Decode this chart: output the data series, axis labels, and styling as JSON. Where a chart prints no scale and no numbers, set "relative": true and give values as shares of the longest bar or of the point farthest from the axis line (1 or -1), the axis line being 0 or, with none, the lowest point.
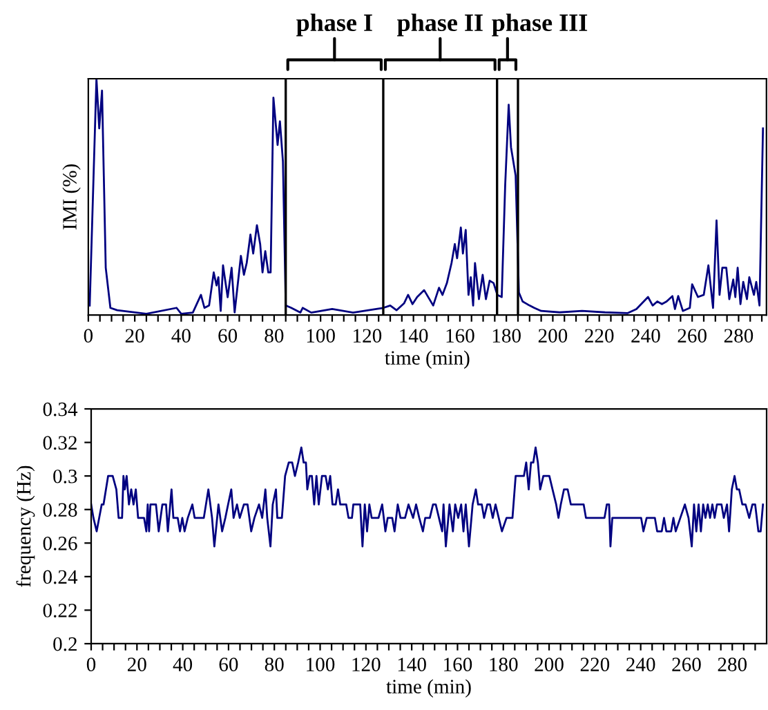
{
  "chart_data": [
    {
      "type": "line",
      "relative": true,
      "xlabel": "time (min)",
      "ylabel": "IMI (%)",
      "xlim": [
        0,
        292
      ],
      "xticks": [
        0,
        {
          "value": 5,
          "label": null
        },
        {
          "value": 10,
          "label": null
        },
        {
          "value": 15,
          "label": null
        },
        20,
        {
          "value": 25,
          "label": null
        },
        {
          "value": 30,
          "label": null
        },
        {
          "value": 35,
          "label": null
        },
        40,
        {
          "value": 45,
          "label": null
        },
        {
          "value": 50,
          "label": null
        },
        {
          "value": 55,
          "label": null
        },
        60,
        {
          "value": 65,
          "label": null
        },
        {
          "value": 70,
          "label": null
        },
        {
          "value": 75,
          "label": null
        },
        80,
        {
          "value": 85,
          "label": null
        },
        {
          "value": 90,
          "label": null
        },
        {
          "value": 95,
          "label": null
        },
        100,
        {
          "value": 105,
          "label": null
        },
        {
          "value": 110,
          "label": null
        },
        {
          "value": 115,
          "label": null
        },
        120,
        {
          "value": 125,
          "label": null
        },
        {
          "value": 130,
          "label": null
        },
        {
          "value": 135,
          "label": null
        },
        140,
        {
          "value": 145,
          "label": null
        },
        {
          "value": 150,
          "label": null
        },
        {
          "value": 155,
          "label": null
        },
        160,
        {
          "value": 165,
          "label": null
        },
        {
          "value": 170,
          "label": null
        },
        {
          "value": 175,
          "label": null
        },
        180,
        {
          "value": 185,
          "label": null
        },
        {
          "value": 190,
          "label": null
        },
        {
          "value": 195,
          "label": null
        },
        200,
        {
          "value": 205,
          "label": null
        },
        {
          "value": 210,
          "label": null
        },
        {
          "value": 215,
          "label": null
        },
        220,
        {
          "value": 225,
          "label": null
        },
        {
          "value": 230,
          "label": null
        },
        {
          "value": 235,
          "label": null
        },
        240,
        {
          "value": 245,
          "label": null
        },
        {
          "value": 250,
          "label": null
        },
        {
          "value": 255,
          "label": null
        },
        260,
        {
          "value": 265,
          "label": null
        },
        {
          "value": 270,
          "label": null
        },
        {
          "value": 275,
          "label": null
        },
        280,
        {
          "value": 285,
          "label": null
        },
        {
          "value": 290,
          "label": null
        }
      ],
      "ref_lines": [
        {
          "axis": "x",
          "value": 85,
          "color": "#000000"
        },
        {
          "axis": "x",
          "value": 127,
          "color": "#000000"
        },
        {
          "axis": "x",
          "value": 176,
          "color": "#000000"
        },
        {
          "axis": "x",
          "value": 185,
          "color": "#000000"
        }
      ],
      "annotations": [
        "phase I",
        "phase II",
        "phase III"
      ],
      "series": [
        {
          "color": "#000080",
          "x": [
            0.6,
            3.5,
            4.7,
            5.9,
            7.5,
            9.5,
            12.4,
            25,
            38,
            40,
            45,
            48.5,
            50,
            52,
            54,
            55.2,
            56,
            57,
            58,
            60,
            61.7,
            63,
            65.7,
            67,
            68.2,
            69.8,
            71,
            72.6,
            74,
            75,
            76.2,
            77.5,
            78.5,
            79.7,
            81.5,
            82.5,
            83.8,
            85,
            87.4,
            91.3,
            92.3,
            96,
            105,
            114,
            124,
            127,
            130,
            132.7,
            136,
            137.7,
            139.6,
            141.6,
            144.6,
            148.5,
            151,
            152.5,
            154.4,
            156.4,
            157.8,
            158.8,
            160.4,
            161.3,
            162.5,
            163.7,
            164.7,
            165.7,
            166.5,
            168.2,
            169.8,
            171.2,
            172.8,
            174.5,
            176.1,
            178,
            179.5,
            181,
            182,
            184,
            185.4,
            187,
            190,
            192,
            195,
            203,
            212.6,
            222.5,
            232.3,
            236,
            241,
            243,
            245,
            247,
            249,
            251.5,
            252.6,
            254,
            256,
            259,
            260,
            262.5,
            265,
            267,
            269,
            270.5,
            271.8,
            273,
            274.7,
            276,
            277.7,
            278.6,
            279.6,
            280.8,
            282,
            283.6,
            284.6,
            286.6,
            287.6,
            289,
            290.5
          ],
          "values": [
            0.04,
            1.0,
            0.79,
            0.95,
            0.2,
            0.03,
            0.02,
            0.005,
            0.03,
            0.005,
            0.01,
            0.085,
            0.03,
            0.04,
            0.18,
            0.125,
            0.16,
            0.017,
            0.21,
            0.075,
            0.2,
            0.011,
            0.25,
            0.17,
            0.22,
            0.34,
            0.26,
            0.38,
            0.3,
            0.18,
            0.27,
            0.18,
            0.18,
            0.92,
            0.72,
            0.82,
            0.65,
            0.04,
            0.03,
            0.01,
            0.03,
            0.01,
            0.025,
            0.01,
            0.025,
            0.03,
            0.04,
            0.02,
            0.05,
            0.085,
            0.046,
            0.076,
            0.105,
            0.04,
            0.115,
            0.085,
            0.135,
            0.22,
            0.3,
            0.24,
            0.37,
            0.26,
            0.36,
            0.085,
            0.16,
            0.04,
            0.22,
            0.067,
            0.17,
            0.067,
            0.145,
            0.135,
            0.085,
            0.076,
            0.55,
            0.89,
            0.71,
            0.59,
            0.095,
            0.057,
            0.04,
            0.03,
            0.017,
            0.011,
            0.017,
            0.011,
            0.008,
            0.025,
            0.076,
            0.04,
            0.057,
            0.046,
            0.057,
            0.08,
            0.025,
            0.08,
            0.017,
            0.03,
            0.13,
            0.076,
            0.085,
            0.21,
            0.03,
            0.4,
            0.085,
            0.2,
            0.2,
            0.067,
            0.15,
            0.076,
            0.2,
            0.046,
            0.14,
            0.067,
            0.16,
            0.085,
            0.14,
            0.04,
            0.79
          ]
        }
      ]
    },
    {
      "type": "line",
      "xlabel": "time (min)",
      "ylabel": "frequency (Hz)",
      "xlim": [
        0,
        295
      ],
      "ylim": [
        0.2,
        0.34
      ],
      "yticks": [
        0.2,
        0.22,
        0.24,
        0.26,
        0.28,
        0.3,
        0.32,
        0.34
      ],
      "xticks": [
        0,
        {
          "value": 5,
          "label": null
        },
        {
          "value": 10,
          "label": null
        },
        {
          "value": 15,
          "label": null
        },
        20,
        {
          "value": 25,
          "label": null
        },
        {
          "value": 30,
          "label": null
        },
        {
          "value": 35,
          "label": null
        },
        40,
        {
          "value": 45,
          "label": null
        },
        {
          "value": 50,
          "label": null
        },
        {
          "value": 55,
          "label": null
        },
        60,
        {
          "value": 65,
          "label": null
        },
        {
          "value": 70,
          "label": null
        },
        {
          "value": 75,
          "label": null
        },
        80,
        {
          "value": 85,
          "label": null
        },
        {
          "value": 90,
          "label": null
        },
        {
          "value": 95,
          "label": null
        },
        100,
        {
          "value": 105,
          "label": null
        },
        {
          "value": 110,
          "label": null
        },
        {
          "value": 115,
          "label": null
        },
        120,
        {
          "value": 125,
          "label": null
        },
        {
          "value": 130,
          "label": null
        },
        {
          "value": 135,
          "label": null
        },
        140,
        {
          "value": 145,
          "label": null
        },
        {
          "value": 150,
          "label": null
        },
        {
          "value": 155,
          "label": null
        },
        160,
        {
          "value": 165,
          "label": null
        },
        {
          "value": 170,
          "label": null
        },
        {
          "value": 175,
          "label": null
        },
        180,
        {
          "value": 185,
          "label": null
        },
        {
          "value": 190,
          "label": null
        },
        {
          "value": 195,
          "label": null
        },
        200,
        {
          "value": 205,
          "label": null
        },
        {
          "value": 210,
          "label": null
        },
        {
          "value": 215,
          "label": null
        },
        220,
        {
          "value": 225,
          "label": null
        },
        {
          "value": 230,
          "label": null
        },
        {
          "value": 235,
          "label": null
        },
        240,
        {
          "value": 245,
          "label": null
        },
        {
          "value": 250,
          "label": null
        },
        {
          "value": 255,
          "label": null
        },
        260,
        {
          "value": 265,
          "label": null
        },
        {
          "value": 270,
          "label": null
        },
        {
          "value": 275,
          "label": null
        },
        280,
        {
          "value": 285,
          "label": null
        },
        {
          "value": 290,
          "label": null
        }
      ],
      "series": [
        {
          "color": "#000080",
          "x": [
            0,
            1.0,
            2.4,
            4.6,
            5.4,
            7.4,
            9.4,
            11.0,
            12.0,
            13.5,
            14.1,
            14.7,
            15.5,
            16.5,
            17.5,
            18.5,
            19.5,
            20.5,
            23.1,
            24.1,
            24.7,
            25.3,
            25.9,
            27.1,
            28.3,
            29.5,
            31.1,
            32.7,
            33.5,
            35.1,
            35.9,
            37.8,
            38.8,
            39.8,
            40.8,
            42.2,
            44.2,
            45.2,
            49.2,
            51.2,
            52.8,
            53.8,
            55.6,
            57.2,
            58.6,
            59.8,
            61.2,
            62.2,
            63.7,
            64.9,
            66.7,
            68.3,
            69.9,
            71.3,
            73.3,
            74.7,
            76.1,
            76.9,
            78.3,
            79.3,
            80.7,
            81.3,
            83.3,
            84.7,
            86.3,
            87.8,
            89.0,
            90.4,
            91.8,
            92.8,
            93.8,
            94.4,
            95.4,
            96.4,
            97.4,
            98.4,
            99.4,
            100.8,
            102.4,
            103.4,
            104.4,
            105.4,
            106.8,
            107.8,
            108.8,
            109.8,
            111.4,
            112.4,
            113.9,
            114.5,
            117.5,
            118.5,
            119.5,
            120.5,
            121.5,
            122.5,
            125.5,
            127.1,
            128.5,
            129.5,
            131.5,
            132.5,
            133.9,
            135.1,
            137.1,
            138.6,
            140.6,
            141.9,
            143.3,
            144.9,
            145.9,
            147.9,
            149.3,
            150.5,
            151.9,
            153.3,
            153.9,
            154.9,
            156.5,
            158.0,
            159.0,
            160.3,
            161.6,
            162.6,
            163.6,
            165.0,
            166.6,
            168.0,
            169.0,
            170.6,
            171.6,
            173.0,
            174.2,
            175.4,
            176.6,
            178.0,
            179.4,
            181.4,
            184.0,
            185.4,
            186.6,
            189.0,
            190.0,
            191.1,
            192.1,
            193.1,
            194.1,
            195.1,
            196.1,
            197.5,
            200.1,
            201.5,
            203.1,
            204.1,
            205.1,
            206.5,
            208.1,
            209.5,
            215.1,
            216.1,
            224.2,
            225.2,
            226.2,
            226.8,
            227.6,
            240.2,
            241.2,
            242.6,
            246.2,
            247.2,
            249.2,
            250.2,
            251.2,
            253.3,
            254.3,
            255.3,
            257.3,
            259.3,
            260.9,
            262.3,
            263.3,
            264.3,
            265.3,
            266.3,
            267.3,
            268.3,
            269.3,
            270.3,
            271.3,
            272.3,
            273.3,
            275.3,
            276.3,
            277.7,
            278.6,
            279.8,
            281.0,
            282.0,
            283.0,
            284.4,
            285.8,
            287.4,
            288.8,
            290.0,
            291.4,
            292.4,
            293.4
          ],
          "values": [
            0.283,
            0.275,
            0.267,
            0.283,
            0.283,
            0.3,
            0.3,
            0.292,
            0.275,
            0.275,
            0.3,
            0.292,
            0.3,
            0.283,
            0.292,
            0.283,
            0.292,
            0.275,
            0.275,
            0.267,
            0.283,
            0.267,
            0.283,
            0.283,
            0.283,
            0.267,
            0.283,
            0.283,
            0.267,
            0.292,
            0.275,
            0.275,
            0.267,
            0.275,
            0.267,
            0.275,
            0.283,
            0.275,
            0.275,
            0.292,
            0.275,
            0.258,
            0.283,
            0.267,
            0.275,
            0.283,
            0.292,
            0.275,
            0.283,
            0.275,
            0.283,
            0.283,
            0.267,
            0.275,
            0.283,
            0.275,
            0.292,
            0.275,
            0.258,
            0.283,
            0.292,
            0.275,
            0.275,
            0.3,
            0.308,
            0.308,
            0.3,
            0.308,
            0.317,
            0.308,
            0.308,
            0.292,
            0.3,
            0.3,
            0.283,
            0.3,
            0.283,
            0.3,
            0.3,
            0.292,
            0.3,
            0.283,
            0.283,
            0.292,
            0.283,
            0.283,
            0.283,
            0.275,
            0.275,
            0.283,
            0.283,
            0.258,
            0.283,
            0.267,
            0.283,
            0.275,
            0.275,
            0.283,
            0.267,
            0.275,
            0.275,
            0.267,
            0.283,
            0.275,
            0.275,
            0.283,
            0.275,
            0.283,
            0.275,
            0.267,
            0.275,
            0.275,
            0.283,
            0.283,
            0.275,
            0.267,
            0.283,
            0.258,
            0.283,
            0.267,
            0.283,
            0.275,
            0.283,
            0.267,
            0.283,
            0.258,
            0.283,
            0.292,
            0.283,
            0.283,
            0.275,
            0.283,
            0.283,
            0.275,
            0.283,
            0.275,
            0.267,
            0.275,
            0.275,
            0.3,
            0.3,
            0.3,
            0.308,
            0.292,
            0.308,
            0.308,
            0.317,
            0.308,
            0.292,
            0.3,
            0.3,
            0.292,
            0.283,
            0.275,
            0.283,
            0.292,
            0.292,
            0.283,
            0.283,
            0.275,
            0.275,
            0.283,
            0.283,
            0.258,
            0.275,
            0.275,
            0.267,
            0.275,
            0.275,
            0.267,
            0.267,
            0.275,
            0.267,
            0.267,
            0.275,
            0.267,
            0.275,
            0.283,
            0.275,
            0.258,
            0.283,
            0.267,
            0.283,
            0.267,
            0.283,
            0.275,
            0.283,
            0.275,
            0.283,
            0.275,
            0.283,
            0.283,
            0.275,
            0.283,
            0.267,
            0.292,
            0.3,
            0.292,
            0.292,
            0.283,
            0.283,
            0.275,
            0.283,
            0.283,
            0.267,
            0.267,
            0.283
          ]
        }
      ]
    }
  ]
}
